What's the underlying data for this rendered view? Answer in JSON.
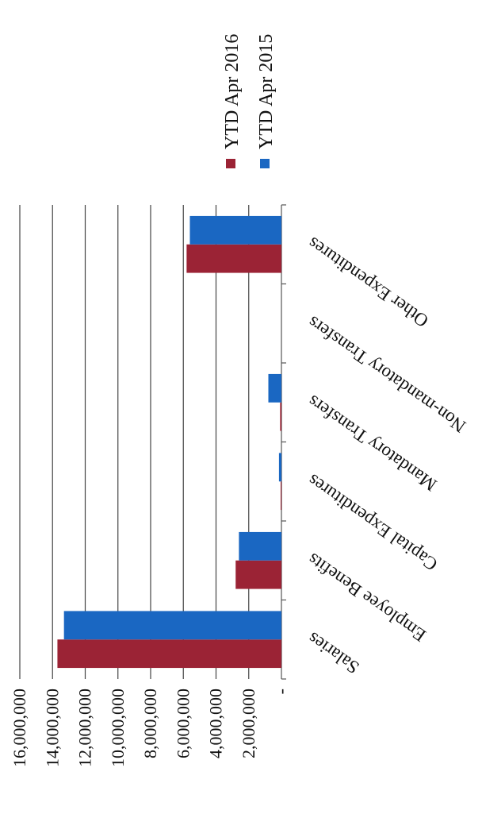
{
  "chart_data": {
    "type": "bar",
    "orientation": "vertical-bars-image-rotated-180",
    "categories": [
      "Salaries",
      "Employee Benefits",
      "Capital Expenditures",
      "Mandatory Transfers",
      "Non-mandatory Transfers",
      "Other Expenditures"
    ],
    "series": [
      {
        "name": "YTD Apr 2016",
        "color": "#9b2335",
        "values": [
          13700000,
          2800000,
          50000,
          80000,
          0,
          5800000
        ]
      },
      {
        "name": "YTD Apr 2015",
        "color": "#1a67c2",
        "values": [
          13300000,
          2600000,
          150000,
          800000,
          0,
          5600000
        ]
      }
    ],
    "y_ticks": [
      "-",
      "2,000,000",
      "4,000,000",
      "6,000,000",
      "8,000,000",
      "10,000,000",
      "12,000,000",
      "14,000,000",
      "16,000,000"
    ],
    "ylim": [
      0,
      16000000
    ],
    "grid": true,
    "legend_position": "right"
  }
}
